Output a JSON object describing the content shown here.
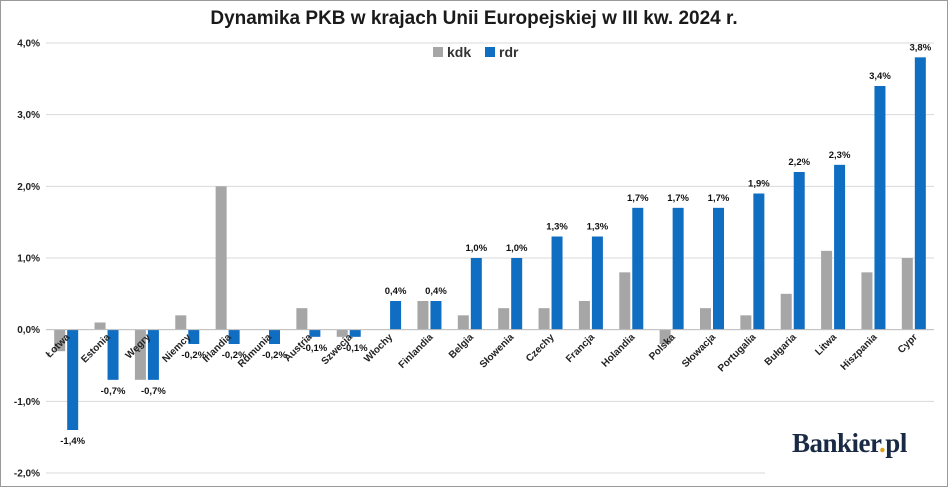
{
  "chart_data": {
    "type": "bar",
    "title": "Dynamika PKB w krajach Unii Europejskiej w III kw. 2024 r.",
    "categories": [
      "Łotwa",
      "Estonia",
      "Węgry",
      "Niemcy",
      "Irlandia",
      "Rumunia",
      "Austria",
      "Szwecja",
      "Włochy",
      "Finlandia",
      "Belgia",
      "Słowenia",
      "Czechy",
      "Francja",
      "Holandia",
      "Polska",
      "Słowacja",
      "Portugalia",
      "Bułgaria",
      "Litwa",
      "Hiszpania",
      "Cypr"
    ],
    "series": [
      {
        "name": "kdk",
        "color": "#a6a6a6",
        "values": [
          -0.3,
          0.1,
          -0.7,
          0.2,
          2.0,
          0.0,
          0.3,
          -0.1,
          0.0,
          0.4,
          0.2,
          0.3,
          0.3,
          0.4,
          0.8,
          -0.2,
          0.3,
          0.2,
          0.5,
          1.1,
          0.8,
          1.0
        ]
      },
      {
        "name": "rdr",
        "color": "#0f6dc2",
        "values": [
          -1.4,
          -0.7,
          -0.7,
          -0.2,
          -0.2,
          -0.2,
          -0.1,
          -0.1,
          0.4,
          0.4,
          1.0,
          1.0,
          1.3,
          1.3,
          1.7,
          1.7,
          1.7,
          1.9,
          2.2,
          2.3,
          3.4,
          3.8
        ]
      }
    ],
    "data_labels": [
      "-1,4%",
      "-0,7%",
      "-0,7%",
      "-0,2%",
      "-0,2%",
      "-0,2%",
      "-0,1%",
      "-0,1%",
      "0,4%",
      "0,4%",
      "1,0%",
      "1,0%",
      "1,3%",
      "1,3%",
      "1,7%",
      "1,7%",
      "1,7%",
      "1,9%",
      "2,2%",
      "2,3%",
      "3,4%",
      "3,8%"
    ],
    "ylim": [
      -2.0,
      4.0
    ],
    "yticks": [
      -2.0,
      -1.0,
      0.0,
      1.0,
      2.0,
      3.0,
      4.0
    ],
    "ytick_labels": [
      "-2,0%",
      "-1,0%",
      "0,0%",
      "1,0%",
      "2,0%",
      "3,0%",
      "4,0%"
    ],
    "grid": true,
    "legend": "top-center"
  },
  "logo": {
    "text": "Bankier",
    "dot": ".",
    "suffix": "pl"
  }
}
